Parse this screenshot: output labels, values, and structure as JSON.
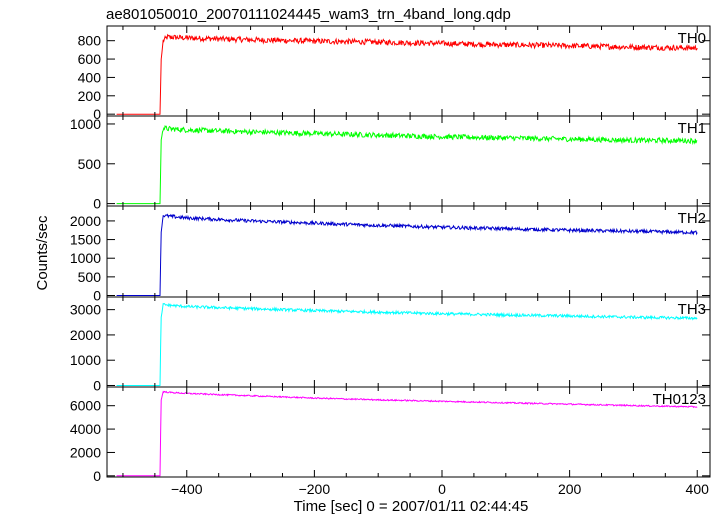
{
  "chart_data": {
    "type": "line",
    "title": "ae801050010_20070111024445_wam3_trn_4band_long.qdp",
    "xlabel": "Time [sec] 0 = 2007/01/11 02:44:45",
    "ylabel": "Counts/sec",
    "xlim": [
      -525,
      420
    ],
    "x_ticks": [
      -400,
      -200,
      0,
      200,
      400
    ],
    "x_tick_labels": [
      "−400",
      "−200",
      "0",
      "200",
      "400"
    ],
    "grid": false,
    "panels": [
      {
        "name": "TH0",
        "color": "#ff0000",
        "ylim": [
          -20,
          960
        ],
        "y_ticks": [
          0,
          200,
          400,
          600,
          800
        ],
        "x": [
          -510,
          -442,
          -441,
          -440,
          -437,
          -430,
          -400,
          -300,
          -200,
          -100,
          0,
          100,
          200,
          300,
          400
        ],
        "y": [
          0,
          0,
          300,
          600,
          800,
          840,
          830,
          810,
          795,
          785,
          770,
          755,
          745,
          730,
          720
        ],
        "noise": 30
      },
      {
        "name": "TH1",
        "color": "#00ff00",
        "ylim": [
          -30,
          1100
        ],
        "y_ticks": [
          0,
          500,
          1000
        ],
        "x": [
          -510,
          -442,
          -441,
          -440,
          -437,
          -430,
          -400,
          -300,
          -200,
          -100,
          0,
          100,
          200,
          300,
          400
        ],
        "y": [
          0,
          0,
          400,
          800,
          950,
          940,
          925,
          900,
          880,
          860,
          840,
          825,
          810,
          795,
          790
        ],
        "noise": 32
      },
      {
        "name": "TH2",
        "color": "#0000cc",
        "ylim": [
          -40,
          2400
        ],
        "y_ticks": [
          0,
          500,
          1000,
          1500,
          2000
        ],
        "x": [
          -510,
          -442,
          -441,
          -440,
          -437,
          -430,
          -400,
          -300,
          -200,
          -100,
          0,
          100,
          200,
          300,
          400
        ],
        "y": [
          0,
          0,
          900,
          1700,
          2150,
          2130,
          2080,
          2000,
          1940,
          1880,
          1830,
          1790,
          1750,
          1720,
          1690
        ],
        "noise": 45
      },
      {
        "name": "TH3",
        "color": "#00ffff",
        "ylim": [
          -60,
          3500
        ],
        "y_ticks": [
          0,
          1000,
          2000,
          3000
        ],
        "x": [
          -510,
          -442,
          -441,
          -440,
          -437,
          -430,
          -400,
          -300,
          -200,
          -100,
          0,
          100,
          200,
          300,
          400
        ],
        "y": [
          0,
          0,
          1500,
          2700,
          3200,
          3180,
          3120,
          3040,
          2960,
          2900,
          2840,
          2790,
          2750,
          2700,
          2660
        ],
        "noise": 55
      },
      {
        "name": "TH0123",
        "color": "#ff00ff",
        "ylim": [
          -100,
          7600
        ],
        "y_ticks": [
          0,
          2000,
          4000,
          6000
        ],
        "x": [
          -510,
          -442,
          -441,
          -440,
          -437,
          -430,
          -400,
          -300,
          -200,
          -100,
          0,
          100,
          200,
          300,
          400
        ],
        "y": [
          0,
          0,
          3500,
          6500,
          7200,
          7150,
          7050,
          6850,
          6650,
          6500,
          6380,
          6250,
          6130,
          6010,
          5900
        ],
        "noise": 55
      }
    ]
  }
}
